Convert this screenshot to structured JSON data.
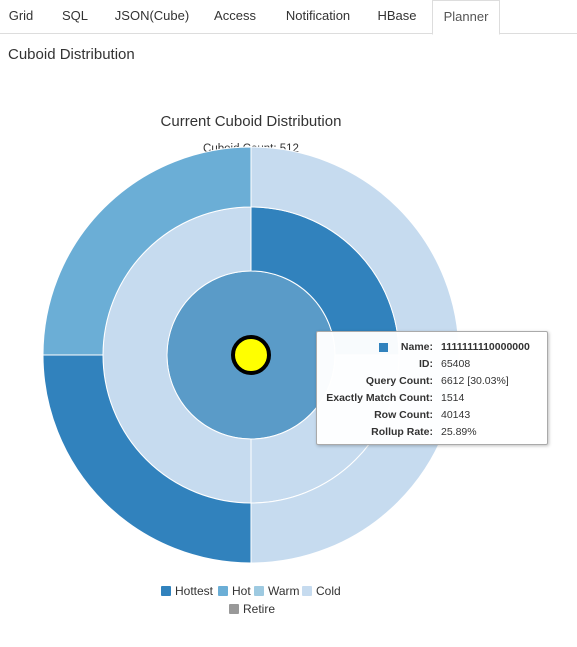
{
  "tabs": [
    {
      "label": "Grid"
    },
    {
      "label": "SQL"
    },
    {
      "label": "JSON(Cube)"
    },
    {
      "label": "Access"
    },
    {
      "label": "Notification"
    },
    {
      "label": "HBase"
    },
    {
      "label": "Planner"
    }
  ],
  "active_tab": "Planner",
  "section_title": "Cuboid Distribution",
  "colors": {
    "hottest": "#3182bd",
    "hot": "#6baed6",
    "warm": "#9ecae1",
    "cold": "#c6dbef",
    "retire": "#999999",
    "center": "#5a9bc8",
    "marker": "#ffff00"
  },
  "chart_data": {
    "type": "sunburst",
    "title": "Current Cuboid Distribution",
    "subtitle": "Cuboid Count: 512",
    "rings": [
      {
        "level": 0,
        "segments": [
          {
            "share": 1.0,
            "color": "center"
          }
        ]
      },
      {
        "level": 1,
        "segments": [
          {
            "share": 0.25,
            "color": "hottest"
          },
          {
            "share": 0.25,
            "color": "cold"
          },
          {
            "share": 0.5,
            "color": "cold"
          }
        ]
      },
      {
        "level": 2,
        "segments": [
          {
            "share": 0.5,
            "color": "cold"
          },
          {
            "share": 0.25,
            "color": "hottest"
          },
          {
            "share": 0.25,
            "color": "hot"
          }
        ]
      }
    ],
    "legend": [
      {
        "label": "Hottest",
        "color": "hottest"
      },
      {
        "label": "Hot",
        "color": "hot"
      },
      {
        "label": "Warm",
        "color": "warm"
      },
      {
        "label": "Cold",
        "color": "cold"
      },
      {
        "label": "Retire",
        "color": "retire"
      }
    ],
    "tooltip": {
      "name_label": "Name:",
      "name_value": "1111111110000000",
      "rows": [
        {
          "label": "ID:",
          "value": "65408"
        },
        {
          "label": "Query Count:",
          "value": "6612 [30.03%]"
        },
        {
          "label": "Exactly Match Count:",
          "value": "1514"
        },
        {
          "label": "Row Count:",
          "value": "40143"
        },
        {
          "label": "Rollup Rate:",
          "value": "25.89%"
        }
      ]
    }
  }
}
